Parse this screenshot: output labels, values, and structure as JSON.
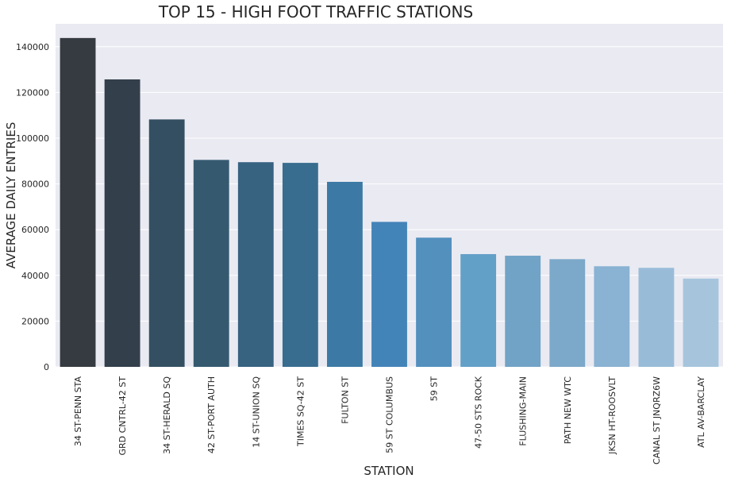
{
  "chart_data": {
    "type": "bar",
    "title": "TOP 15 - HIGH FOOT TRAFFIC STATIONS",
    "xlabel": "STATION",
    "ylabel": "AVERAGE DAILY ENTRIES",
    "ylim": [
      0,
      150000
    ],
    "yticks": [
      0,
      20000,
      40000,
      60000,
      80000,
      100000,
      120000,
      140000
    ],
    "grid": true,
    "legend": "none",
    "categories": [
      "34 ST-PENN STA",
      "GRD CNTRL-42 ST",
      "34 ST-HERALD SQ",
      "42 ST-PORT AUTH",
      "14 ST-UNION SQ",
      "TIMES SQ-42 ST",
      "FULTON ST",
      "59 ST COLUMBUS",
      "59 ST",
      "47-50 STS ROCK",
      "FLUSHING-MAIN",
      "PATH NEW WTC",
      "JKSN HT-ROOSVLT",
      "CANAL ST JNQRZ6W",
      "ATL AV-BARCLAY"
    ],
    "values": [
      143800,
      125700,
      108200,
      90500,
      89500,
      89200,
      80900,
      63400,
      56500,
      49300,
      48600,
      47100,
      44000,
      43300,
      38600
    ],
    "colors": [
      "#353b40",
      "#333f4a",
      "#344f62",
      "#355a70",
      "#376280",
      "#386d8f",
      "#3c7aa5",
      "#4384b8",
      "#5390be",
      "#63a0c8",
      "#71a3c6",
      "#7ca8c9",
      "#8ab2d2",
      "#98bcd8",
      "#a6c5dd"
    ],
    "background": "#eaeaf2",
    "grid_color": "#ffffff"
  }
}
